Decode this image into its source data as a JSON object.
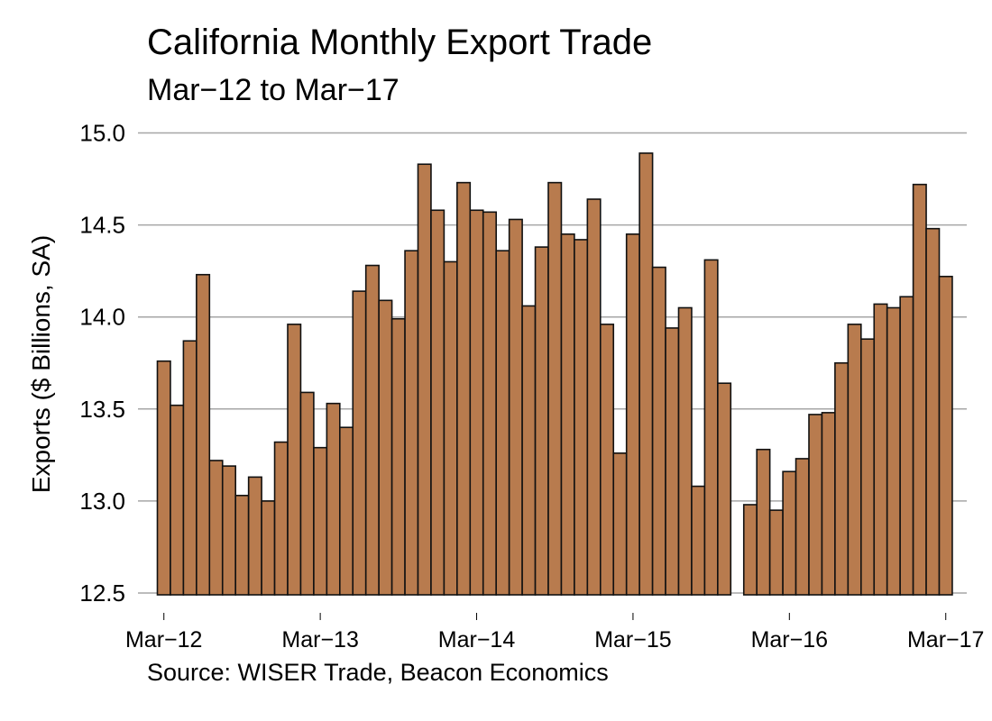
{
  "chart_data": {
    "type": "bar",
    "title": "California Monthly Export Trade",
    "subtitle": "Mar−12 to Mar−17",
    "xlabel": "",
    "ylabel": "Exports ($ Billions, SA)",
    "source": "Source: WISER Trade, Beacon Economics",
    "ylim": [
      12.5,
      15.0
    ],
    "yticks": [
      "12.5",
      "13.0",
      "13.5",
      "14.0",
      "14.5",
      "15.0"
    ],
    "xticks": [
      "Mar−12",
      "Mar−13",
      "Mar−14",
      "Mar−15",
      "Mar−16",
      "Mar−17"
    ],
    "grid": "horizontal",
    "legend": "none",
    "bar_color": "#B87B4E",
    "categories": [
      "Mar-12",
      "Apr-12",
      "May-12",
      "Jun-12",
      "Jul-12",
      "Aug-12",
      "Sep-12",
      "Oct-12",
      "Nov-12",
      "Dec-12",
      "Jan-13",
      "Feb-13",
      "Mar-13",
      "Apr-13",
      "May-13",
      "Jun-13",
      "Jul-13",
      "Aug-13",
      "Sep-13",
      "Oct-13",
      "Nov-13",
      "Dec-13",
      "Jan-14",
      "Feb-14",
      "Mar-14",
      "Apr-14",
      "May-14",
      "Jun-14",
      "Jul-14",
      "Aug-14",
      "Sep-14",
      "Oct-14",
      "Nov-14",
      "Dec-14",
      "Jan-15",
      "Feb-15",
      "Mar-15",
      "Apr-15",
      "May-15",
      "Jun-15",
      "Jul-15",
      "Aug-15",
      "Sep-15",
      "Oct-15",
      "Nov-15",
      "Dec-15",
      "Jan-16",
      "Feb-16",
      "Mar-16",
      "Apr-16",
      "May-16",
      "Jun-16",
      "Jul-16",
      "Aug-16",
      "Sep-16",
      "Oct-16",
      "Nov-16",
      "Dec-16",
      "Jan-17",
      "Feb-17",
      "Mar-17"
    ],
    "values": [
      13.76,
      13.52,
      13.87,
      14.23,
      13.22,
      13.19,
      13.03,
      13.13,
      13.0,
      13.32,
      13.96,
      13.59,
      13.29,
      13.53,
      13.4,
      14.14,
      14.28,
      14.09,
      13.99,
      14.36,
      14.83,
      14.58,
      14.3,
      14.73,
      14.58,
      14.57,
      14.36,
      14.53,
      14.06,
      14.38,
      14.73,
      14.45,
      14.42,
      14.64,
      13.96,
      13.26,
      14.45,
      14.89,
      14.27,
      13.94,
      14.05,
      13.08,
      14.31,
      13.64,
      null,
      12.98,
      13.28,
      12.95,
      13.16,
      13.23,
      13.47,
      13.48,
      13.75,
      13.96,
      13.88,
      14.07,
      14.05,
      14.11,
      14.72,
      14.48,
      14.22
    ]
  }
}
